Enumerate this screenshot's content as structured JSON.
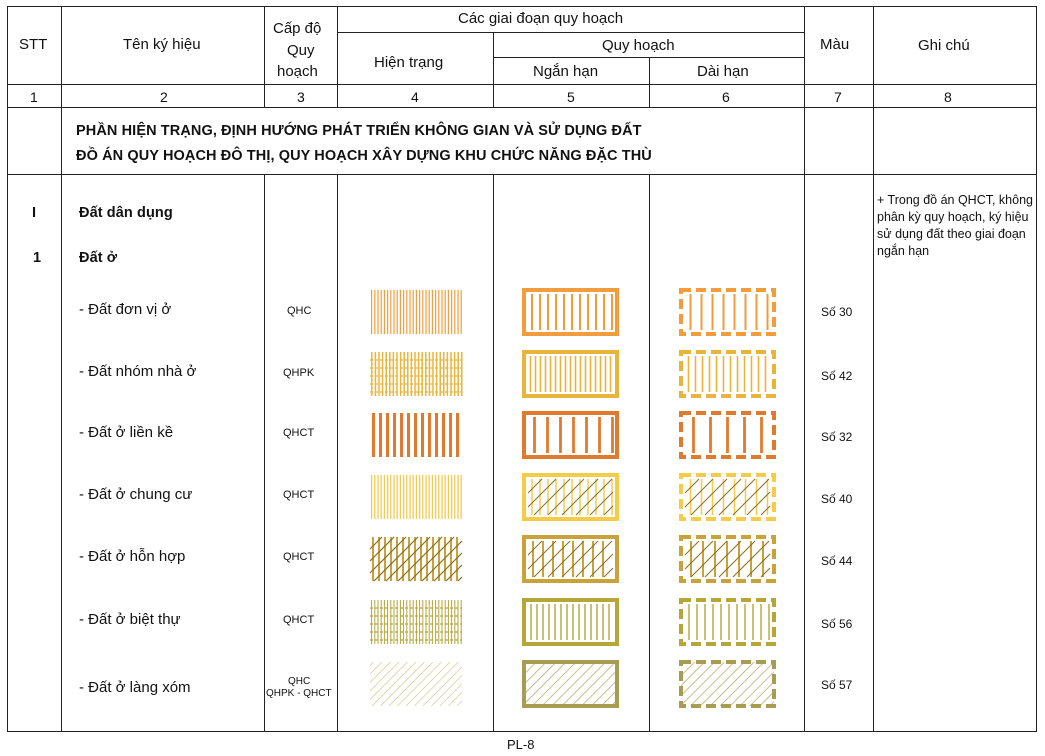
{
  "header": {
    "stt": "STT",
    "name": "Tên ký hiệu",
    "level_l1": "Cấp độ",
    "level_l2": "Quy",
    "level_l3": "hoạch",
    "phases": "Các giai đoạn quy hoạch",
    "current": "Hiện trạng",
    "planning": "Quy hoạch",
    "short_term": "Ngắn hạn",
    "long_term": "Dài hạn",
    "color": "Màu",
    "note": "Ghi chú"
  },
  "column_numbers": [
    "1",
    "2",
    "3",
    "4",
    "5",
    "6",
    "7",
    "8"
  ],
  "section": {
    "line1": "PHẦN HIỆN TRẠNG, ĐỊNH HƯỚNG PHÁT TRIỂN KHÔNG GIAN VÀ SỬ DỤNG ĐẤT",
    "line2": "ĐỒ ÁN QUY HOẠCH ĐÔ THỊ, QUY HOẠCH XÂY DỰNG KHU CHỨC NĂNG ĐẶC THÙ"
  },
  "group": {
    "stt": "I",
    "name": "Đất dân dụng"
  },
  "subgroup": {
    "stt": "1",
    "name": "Đất ở"
  },
  "rows": [
    {
      "name": "- Đất đơn vị ở",
      "level": "QHC",
      "color_code": "Số 30",
      "color": "#f39c3c"
    },
    {
      "name": "- Đất nhóm nhà ở",
      "level": "QHPK",
      "color_code": "Số 42",
      "color": "#e8b53a"
    },
    {
      "name": "- Đất  ở liền kề",
      "level": "QHCT",
      "color_code": "Số 32",
      "color": "#e07a2e"
    },
    {
      "name": "- Đất  ở chung cư",
      "level": "QHCT",
      "color_code": "Số 40",
      "color": "#f4cc4a"
    },
    {
      "name": "- Đất  ở hỗn hợp",
      "level": "QHCT",
      "color_code": "Số 44",
      "color": "#c9a23a"
    },
    {
      "name": "- Đất  ở biệt thự",
      "level": "QHCT",
      "color_code": "Số 56",
      "color": "#b5a637"
    },
    {
      "name": "- Đất  ở làng xóm",
      "level_l1": "QHC",
      "level_l2": "QHPK - QHCT",
      "color_code": "Số 57",
      "color": "#a89c52"
    }
  ],
  "note": "+ Trong đồ án QHCT, không phân kỳ quy hoạch, ký hiệu sử dụng đất theo giai đoạn ngắn hạn",
  "page_label": "PL-8"
}
